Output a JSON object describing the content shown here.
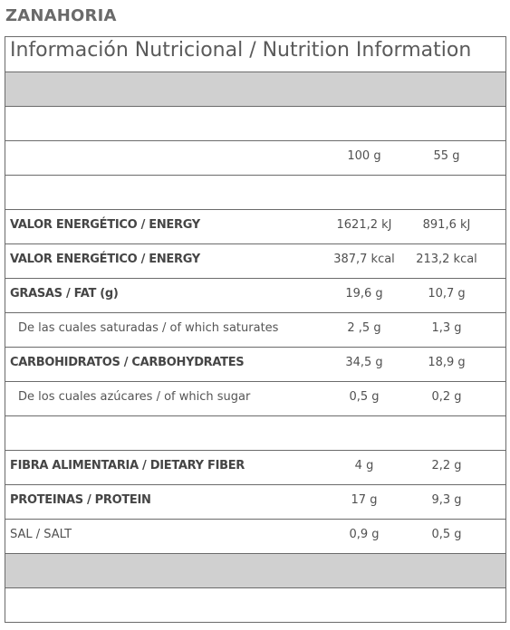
{
  "product": "ZANAHORIA",
  "table_title": "Información Nutricional / Nutrition Information",
  "columns": [
    "100 g",
    "55 g"
  ],
  "rows": [
    {
      "label": "VALOR ENERGÉTICO / ENERGY",
      "v1": "1621,2 kJ",
      "v2": "891,6 kJ"
    },
    {
      "label": "VALOR ENERGÉTICO / ENERGY",
      "v1": "387,7 kcal",
      "v2": "213,2 kcal"
    },
    {
      "label": "GRASAS / FAT (g)",
      "v1": "19,6 g",
      "v2": "10,7 g"
    },
    {
      "label": "De las cuales saturadas / of which saturates",
      "v1": "2 ,5 g",
      "v2": "1,3 g"
    },
    {
      "label": "CARBOHIDRATOS / CARBOHYDRATES",
      "v1": "34,5 g",
      "v2": "18,9 g"
    },
    {
      "label": "De los cuales azúcares / of which sugar",
      "v1": "0,5 g",
      "v2": "0,2 g"
    },
    {
      "label": "FIBRA ALIMENTARIA / DIETARY FIBER",
      "v1": "4 g",
      "v2": "2,2 g"
    },
    {
      "label": "PROTEINAS / PROTEIN",
      "v1": "17 g",
      "v2": "9,3 g"
    },
    {
      "label": "SAL / SALT",
      "v1": "0,9 g",
      "v2": "0,5 g"
    }
  ],
  "colors": {
    "border": "#6b6b6b",
    "shaded_row": "#d0d0d0",
    "text": "#505050"
  }
}
